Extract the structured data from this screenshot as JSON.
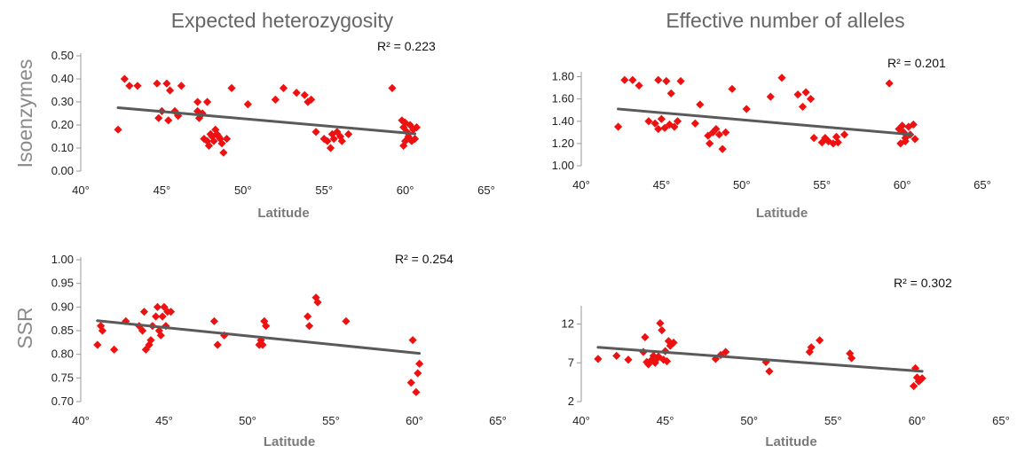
{
  "column_titles": [
    "Expected heterozygosity",
    "Effective number of alleles"
  ],
  "row_labels": [
    "Isoenzymes",
    "SSR"
  ],
  "chart_data": [
    {
      "type": "scatter",
      "row": "Isoenzymes",
      "column": "Expected heterozygosity",
      "xlabel": "Latitude",
      "ylabel": "Isoenzymes",
      "x_ticks": [
        "40°",
        "45°",
        "50°",
        "55°",
        "60°",
        "65°"
      ],
      "y_ticks": [
        "0.00",
        "0.10",
        "0.20",
        "0.30",
        "0.40",
        "0.50"
      ],
      "xlim": [
        40,
        65
      ],
      "ylim": [
        0,
        0.5
      ],
      "r2_label": "R² = 0.223",
      "marker_color": "#ee1111",
      "trend_color": "#5a5a5a",
      "trend": {
        "x": [
          42.3,
          60.6
        ],
        "y": [
          0.275,
          0.162
        ]
      },
      "points": [
        [
          42.3,
          0.18
        ],
        [
          42.7,
          0.4
        ],
        [
          43.0,
          0.37
        ],
        [
          43.5,
          0.37
        ],
        [
          44.7,
          0.38
        ],
        [
          45.3,
          0.38
        ],
        [
          45.5,
          0.35
        ],
        [
          46.2,
          0.37
        ],
        [
          44.8,
          0.23
        ],
        [
          45.0,
          0.26
        ],
        [
          45.4,
          0.22
        ],
        [
          45.8,
          0.26
        ],
        [
          46.0,
          0.24
        ],
        [
          47.2,
          0.3
        ],
        [
          47.2,
          0.26
        ],
        [
          47.5,
          0.25
        ],
        [
          47.3,
          0.23
        ],
        [
          47.8,
          0.3
        ],
        [
          47.6,
          0.14
        ],
        [
          47.8,
          0.13
        ],
        [
          47.9,
          0.11
        ],
        [
          48.0,
          0.16
        ],
        [
          48.1,
          0.15
        ],
        [
          48.2,
          0.13
        ],
        [
          48.3,
          0.18
        ],
        [
          48.4,
          0.16
        ],
        [
          48.5,
          0.15
        ],
        [
          48.6,
          0.14
        ],
        [
          48.7,
          0.12
        ],
        [
          48.8,
          0.08
        ],
        [
          49.0,
          0.14
        ],
        [
          49.3,
          0.36
        ],
        [
          50.3,
          0.29
        ],
        [
          52.0,
          0.31
        ],
        [
          52.5,
          0.36
        ],
        [
          53.3,
          0.34
        ],
        [
          53.8,
          0.33
        ],
        [
          54.0,
          0.3
        ],
        [
          54.2,
          0.31
        ],
        [
          54.5,
          0.17
        ],
        [
          55.0,
          0.14
        ],
        [
          55.2,
          0.13
        ],
        [
          55.4,
          0.1
        ],
        [
          55.5,
          0.16
        ],
        [
          55.6,
          0.14
        ],
        [
          55.8,
          0.17
        ],
        [
          56.0,
          0.15
        ],
        [
          56.1,
          0.13
        ],
        [
          56.5,
          0.16
        ],
        [
          59.2,
          0.36
        ],
        [
          59.8,
          0.22
        ],
        [
          59.9,
          0.19
        ],
        [
          60.0,
          0.21
        ],
        [
          60.1,
          0.17
        ],
        [
          60.2,
          0.15
        ],
        [
          60.3,
          0.2
        ],
        [
          60.4,
          0.13
        ],
        [
          60.5,
          0.18
        ],
        [
          60.6,
          0.14
        ],
        [
          60.7,
          0.19
        ],
        [
          59.9,
          0.11
        ],
        [
          60.0,
          0.13
        ]
      ]
    },
    {
      "type": "scatter",
      "row": "Isoenzymes",
      "column": "Effective number of alleles",
      "xlabel": "Latitude",
      "ylabel": "",
      "x_ticks": [
        "40°",
        "45°",
        "50°",
        "55°",
        "60°",
        "65°"
      ],
      "y_ticks": [
        "1.00",
        "1.20",
        "1.40",
        "1.60",
        "1.80"
      ],
      "xlim": [
        40,
        65
      ],
      "ylim": [
        1.0,
        1.82
      ],
      "r2_label": "R² = 0.201",
      "marker_color": "#ee1111",
      "trend_color": "#5a5a5a",
      "trend": {
        "x": [
          42.3,
          60.6
        ],
        "y": [
          1.51,
          1.28
        ]
      },
      "points": [
        [
          42.3,
          1.35
        ],
        [
          42.7,
          1.77
        ],
        [
          43.2,
          1.77
        ],
        [
          43.6,
          1.72
        ],
        [
          44.8,
          1.77
        ],
        [
          45.3,
          1.76
        ],
        [
          46.2,
          1.76
        ],
        [
          45.6,
          1.65
        ],
        [
          44.2,
          1.4
        ],
        [
          44.6,
          1.38
        ],
        [
          44.8,
          1.33
        ],
        [
          45.0,
          1.42
        ],
        [
          45.2,
          1.34
        ],
        [
          45.5,
          1.37
        ],
        [
          45.8,
          1.35
        ],
        [
          46.0,
          1.4
        ],
        [
          47.1,
          1.38
        ],
        [
          47.4,
          1.55
        ],
        [
          47.9,
          1.27
        ],
        [
          48.0,
          1.2
        ],
        [
          48.2,
          1.3
        ],
        [
          48.4,
          1.33
        ],
        [
          48.6,
          1.28
        ],
        [
          48.8,
          1.15
        ],
        [
          49.0,
          1.3
        ],
        [
          49.4,
          1.69
        ],
        [
          50.3,
          1.51
        ],
        [
          51.8,
          1.62
        ],
        [
          52.5,
          1.79
        ],
        [
          53.5,
          1.64
        ],
        [
          53.8,
          1.53
        ],
        [
          54.0,
          1.66
        ],
        [
          54.3,
          1.6
        ],
        [
          54.5,
          1.25
        ],
        [
          55.0,
          1.21
        ],
        [
          55.2,
          1.25
        ],
        [
          55.4,
          1.22
        ],
        [
          55.7,
          1.2
        ],
        [
          55.9,
          1.26
        ],
        [
          56.0,
          1.21
        ],
        [
          56.4,
          1.28
        ],
        [
          59.2,
          1.74
        ],
        [
          59.8,
          1.33
        ],
        [
          60.0,
          1.36
        ],
        [
          60.1,
          1.3
        ],
        [
          60.2,
          1.25
        ],
        [
          60.4,
          1.35
        ],
        [
          60.5,
          1.28
        ],
        [
          60.7,
          1.37
        ],
        [
          60.8,
          1.24
        ],
        [
          59.9,
          1.2
        ],
        [
          60.2,
          1.22
        ]
      ]
    },
    {
      "type": "scatter",
      "row": "SSR",
      "column": "Expected heterozygosity",
      "xlabel": "Latitude",
      "ylabel": "SSR",
      "x_ticks": [
        "40°",
        "45°",
        "50°",
        "55°",
        "60°",
        "65°"
      ],
      "y_ticks": [
        "0.70",
        "0.75",
        "0.80",
        "0.85",
        "0.90",
        "0.95",
        "1.00"
      ],
      "xlim": [
        40,
        65
      ],
      "ylim": [
        0.7,
        1.0
      ],
      "r2_label": "R² = 0.254",
      "marker_color": "#ee1111",
      "trend_color": "#5a5a5a",
      "trend": {
        "x": [
          41.0,
          60.3
        ],
        "y": [
          0.871,
          0.802
        ]
      },
      "points": [
        [
          41.0,
          0.82
        ],
        [
          41.2,
          0.86
        ],
        [
          41.3,
          0.85
        ],
        [
          42.0,
          0.81
        ],
        [
          42.7,
          0.87
        ],
        [
          43.5,
          0.86
        ],
        [
          43.7,
          0.85
        ],
        [
          43.8,
          0.89
        ],
        [
          43.9,
          0.81
        ],
        [
          44.1,
          0.82
        ],
        [
          44.2,
          0.83
        ],
        [
          44.3,
          0.86
        ],
        [
          44.5,
          0.88
        ],
        [
          44.6,
          0.9
        ],
        [
          44.7,
          0.85
        ],
        [
          44.8,
          0.84
        ],
        [
          44.9,
          0.88
        ],
        [
          45.0,
          0.9
        ],
        [
          45.1,
          0.86
        ],
        [
          45.2,
          0.89
        ],
        [
          45.4,
          0.89
        ],
        [
          48.0,
          0.87
        ],
        [
          48.2,
          0.82
        ],
        [
          48.6,
          0.84
        ],
        [
          50.7,
          0.82
        ],
        [
          50.8,
          0.83
        ],
        [
          50.9,
          0.82
        ],
        [
          51.0,
          0.87
        ],
        [
          51.1,
          0.86
        ],
        [
          53.6,
          0.88
        ],
        [
          53.7,
          0.86
        ],
        [
          54.1,
          0.92
        ],
        [
          54.2,
          0.91
        ],
        [
          55.9,
          0.87
        ],
        [
          59.8,
          0.74
        ],
        [
          59.9,
          0.83
        ],
        [
          60.1,
          0.72
        ],
        [
          60.2,
          0.76
        ],
        [
          60.3,
          0.78
        ]
      ]
    },
    {
      "type": "scatter",
      "row": "SSR",
      "column": "Effective number of alleles",
      "xlabel": "Latitude",
      "ylabel": "",
      "x_ticks": [
        "40°",
        "45°",
        "50°",
        "55°",
        "60°",
        "65°"
      ],
      "y_ticks": [
        "2",
        "7",
        "12"
      ],
      "xlim": [
        40,
        65
      ],
      "ylim": [
        2,
        14
      ],
      "r2_label": "R² = 0.302",
      "marker_color": "#ee1111",
      "trend_color": "#5a5a5a",
      "trend": {
        "x": [
          41.0,
          60.3
        ],
        "y": [
          9.0,
          5.9
        ]
      },
      "points": [
        [
          41.0,
          7.5
        ],
        [
          42.1,
          7.9
        ],
        [
          42.8,
          7.4
        ],
        [
          43.7,
          8.4
        ],
        [
          43.8,
          10.3
        ],
        [
          43.9,
          7.1
        ],
        [
          44.0,
          6.8
        ],
        [
          44.2,
          7.4
        ],
        [
          44.3,
          7.9
        ],
        [
          44.4,
          7.0
        ],
        [
          44.5,
          7.5
        ],
        [
          44.6,
          7.8
        ],
        [
          44.7,
          12.1
        ],
        [
          44.8,
          11.2
        ],
        [
          44.9,
          7.4
        ],
        [
          45.0,
          8.5
        ],
        [
          45.1,
          7.2
        ],
        [
          45.2,
          9.8
        ],
        [
          45.3,
          9.2
        ],
        [
          45.5,
          9.6
        ],
        [
          48.0,
          7.5
        ],
        [
          48.3,
          8.0
        ],
        [
          48.6,
          8.4
        ],
        [
          51.0,
          7.1
        ],
        [
          51.2,
          5.9
        ],
        [
          53.6,
          8.4
        ],
        [
          53.7,
          9.0
        ],
        [
          54.2,
          9.9
        ],
        [
          56.0,
          8.2
        ],
        [
          56.1,
          7.6
        ],
        [
          59.8,
          4.0
        ],
        [
          59.9,
          6.3
        ],
        [
          60.0,
          5.1
        ],
        [
          60.1,
          4.6
        ],
        [
          60.2,
          4.8
        ],
        [
          60.3,
          5.0
        ]
      ]
    }
  ]
}
